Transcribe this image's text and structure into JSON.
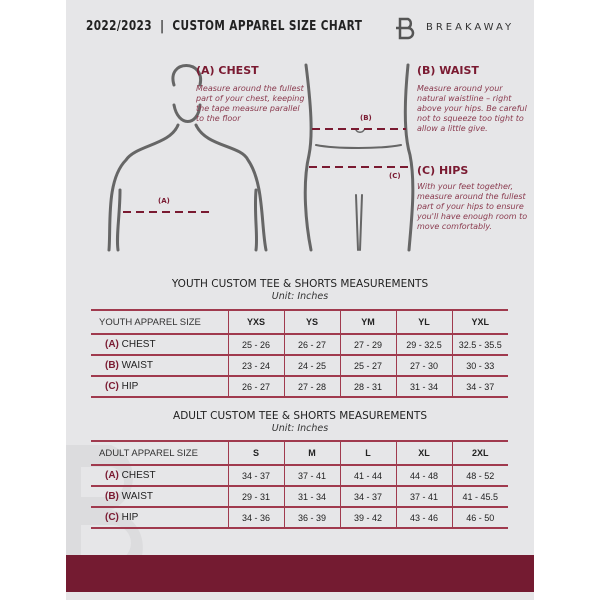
{
  "header": {
    "title": "2022/2023  |  CUSTOM APPAREL SIZE CHART",
    "brand": "BREAKAWAY",
    "logo_letter": "B"
  },
  "guide": {
    "chest": {
      "heading": "(A) CHEST",
      "text": "Measure around the fullest part of your chest, keeping the tape measure parallel to the floor",
      "marker": "(A)"
    },
    "waist": {
      "heading": "(B) WAIST",
      "text": "Measure around your natural waistline – right above your hips. Be careful not to squeeze too tight to allow a little give.",
      "marker": "(B)"
    },
    "hips": {
      "heading": "(C) HIPS",
      "text": "With your feet together, measure around the fullest part of your hips to ensure you'll have enough room to move comfortably.",
      "marker": "(C)"
    }
  },
  "youth": {
    "title": "YOUTH CUSTOM TEE & SHORTS MEASUREMENTS",
    "unit": "Unit: Inches",
    "header_label": "YOUTH APPAREL SIZE",
    "sizes": [
      "YXS",
      "YS",
      "YM",
      "YL",
      "YXL"
    ],
    "rows": [
      {
        "tag": "(A)",
        "label": "CHEST",
        "values": [
          "25 - 26",
          "26 - 27",
          "27 - 29",
          "29 - 32.5",
          "32.5 - 35.5"
        ]
      },
      {
        "tag": "(B)",
        "label": "WAIST",
        "values": [
          "23 - 24",
          "24 - 25",
          "25 - 27",
          "27 - 30",
          "30 - 33"
        ]
      },
      {
        "tag": "(C)",
        "label": "HIP",
        "values": [
          "26 - 27",
          "27 - 28",
          "28 - 31",
          "31 - 34",
          "34 - 37"
        ]
      }
    ]
  },
  "adult": {
    "title": "ADULT CUSTOM TEE & SHORTS MEASUREMENTS",
    "unit": "Unit: Inches",
    "header_label": "ADULT APPAREL SIZE",
    "sizes": [
      "S",
      "M",
      "L",
      "XL",
      "2XL"
    ],
    "rows": [
      {
        "tag": "(A)",
        "label": "CHEST",
        "values": [
          "34 - 37",
          "37 - 41",
          "41 - 44",
          "44 - 48",
          "48 - 52"
        ]
      },
      {
        "tag": "(B)",
        "label": "WAIST",
        "values": [
          "29 - 31",
          "31 - 34",
          "34 - 37",
          "37 - 41",
          "41 - 45.5"
        ]
      },
      {
        "tag": "(C)",
        "label": "HIP",
        "values": [
          "34 - 36",
          "36 - 39",
          "39 - 42",
          "43 - 46",
          "46 - 50"
        ]
      }
    ]
  },
  "colors": {
    "accent": "#741b31",
    "background": "#e6e6e8"
  }
}
